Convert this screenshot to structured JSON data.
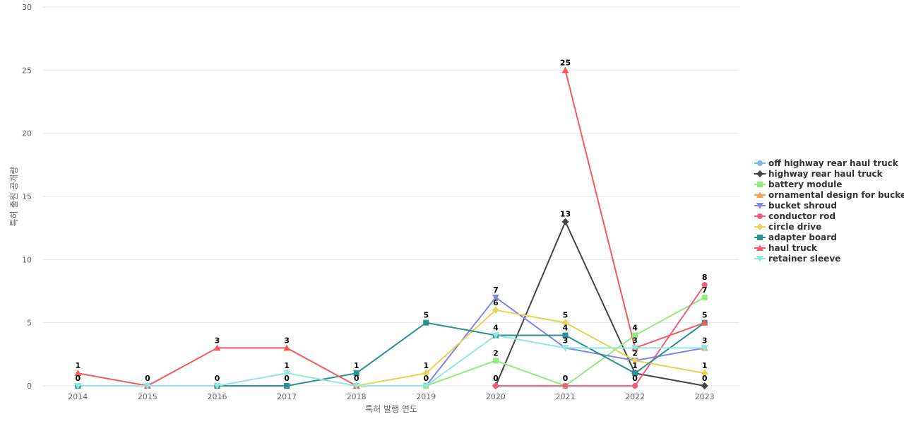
{
  "chart_data": {
    "type": "line",
    "xlabel": "특허 발행 연도",
    "ylabel": "특허 출원 공개량",
    "ylim": [
      0,
      30
    ],
    "yticks": [
      0,
      5,
      10,
      15,
      20,
      25,
      30
    ],
    "grid": true,
    "legend_position": "right",
    "x": [
      "2014",
      "2015",
      "2016",
      "2017",
      "2018",
      "2019",
      "2020",
      "2021",
      "2022",
      "2023"
    ],
    "series": [
      {
        "name": "off highway rear haul truck",
        "color": "#7cb5ec",
        "marker": "circle",
        "values": [
          null,
          null,
          null,
          null,
          null,
          null,
          null,
          null,
          null,
          null
        ]
      },
      {
        "name": "highway rear haul truck",
        "color": "#434348",
        "marker": "diamond",
        "values": [
          null,
          null,
          null,
          null,
          null,
          null,
          0,
          13,
          1,
          0
        ]
      },
      {
        "name": "battery module",
        "color": "#90ed7d",
        "marker": "square",
        "values": [
          null,
          null,
          null,
          null,
          null,
          0,
          2,
          0,
          4,
          7
        ]
      },
      {
        "name": "ornamental design for bucke...",
        "color": "#f7a35c",
        "marker": "triangle",
        "values": [
          null,
          null,
          null,
          null,
          null,
          null,
          null,
          null,
          null,
          3
        ]
      },
      {
        "name": "bucket shroud",
        "color": "#8085e9",
        "marker": "triangle-down",
        "values": [
          null,
          null,
          null,
          null,
          null,
          0,
          7,
          3,
          2,
          3
        ]
      },
      {
        "name": "conductor rod",
        "color": "#f15c80",
        "marker": "circle",
        "values": [
          null,
          null,
          null,
          null,
          null,
          null,
          0,
          0,
          0,
          8
        ]
      },
      {
        "name": "circle drive",
        "color": "#e4d354",
        "marker": "diamond",
        "values": [
          null,
          null,
          null,
          null,
          0,
          1,
          6,
          5,
          2,
          1
        ]
      },
      {
        "name": "adapter board",
        "color": "#2b908f",
        "marker": "square",
        "values": [
          0,
          null,
          0,
          0,
          1,
          5,
          4,
          4,
          1,
          5
        ]
      },
      {
        "name": "haul truck",
        "color": "#f45b5b",
        "marker": "triangle",
        "values": [
          1,
          0,
          3,
          3,
          0,
          null,
          null,
          25,
          3,
          5
        ]
      },
      {
        "name": "retainer sleeve",
        "color": "#91e8e1",
        "marker": "triangle-down",
        "values": [
          0,
          0,
          0,
          1,
          0,
          0,
          4,
          3,
          3,
          3
        ]
      }
    ],
    "data_labels": [
      {
        "x": "2014",
        "series": "haul truck",
        "text": "1"
      },
      {
        "x": "2014",
        "series": "adapter board",
        "text": "0"
      },
      {
        "x": "2015",
        "series": "haul truck",
        "text": "0"
      },
      {
        "x": "2016",
        "series": "haul truck",
        "text": "3"
      },
      {
        "x": "2016",
        "series": "adapter board",
        "text": "0"
      },
      {
        "x": "2017",
        "series": "haul truck",
        "text": "3"
      },
      {
        "x": "2017",
        "series": "retainer sleeve",
        "text": "1"
      },
      {
        "x": "2017",
        "series": "adapter board",
        "text": "0"
      },
      {
        "x": "2018",
        "series": "adapter board",
        "text": "1"
      },
      {
        "x": "2018",
        "series": "haul truck",
        "text": "0"
      },
      {
        "x": "2019",
        "series": "adapter board",
        "text": "5"
      },
      {
        "x": "2019",
        "series": "circle drive",
        "text": "1"
      },
      {
        "x": "2019",
        "series": "retainer sleeve",
        "text": "0"
      },
      {
        "x": "2020",
        "series": "bucket shroud",
        "text": "7"
      },
      {
        "x": "2020",
        "series": "circle drive",
        "text": "6"
      },
      {
        "x": "2020",
        "series": "adapter board",
        "text": "4"
      },
      {
        "x": "2020",
        "series": "battery module",
        "text": "2"
      },
      {
        "x": "2020",
        "series": "highway rear haul truck",
        "text": "0"
      },
      {
        "x": "2021",
        "series": "haul truck",
        "text": "25"
      },
      {
        "x": "2021",
        "series": "highway rear haul truck",
        "text": "13"
      },
      {
        "x": "2021",
        "series": "circle drive",
        "text": "5"
      },
      {
        "x": "2021",
        "series": "adapter board",
        "text": "4"
      },
      {
        "x": "2021",
        "series": "bucket shroud",
        "text": "3"
      },
      {
        "x": "2021",
        "series": "battery module",
        "text": "0"
      },
      {
        "x": "2022",
        "series": "battery module",
        "text": "4"
      },
      {
        "x": "2022",
        "series": "haul truck",
        "text": "3"
      },
      {
        "x": "2022",
        "series": "circle drive",
        "text": "2"
      },
      {
        "x": "2022",
        "series": "adapter board",
        "text": "1"
      },
      {
        "x": "2022",
        "series": "conductor rod",
        "text": "0"
      },
      {
        "x": "2023",
        "series": "conductor rod",
        "text": "8"
      },
      {
        "x": "2023",
        "series": "battery module",
        "text": "7"
      },
      {
        "x": "2023",
        "series": "adapter board",
        "text": "5"
      },
      {
        "x": "2023",
        "series": "bucket shroud",
        "text": "3"
      },
      {
        "x": "2023",
        "series": "circle drive",
        "text": "1"
      },
      {
        "x": "2023",
        "series": "highway rear haul truck",
        "text": "0"
      }
    ]
  }
}
